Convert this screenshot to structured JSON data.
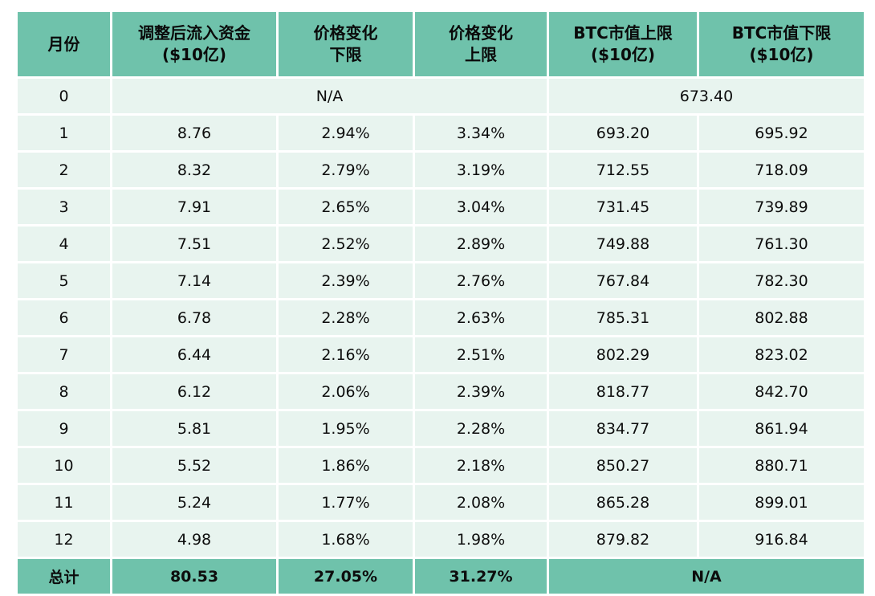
{
  "colors": {
    "accent_teal": "#6fc2ab",
    "body_mint": "#e8f4ef",
    "grid_white": "#ffffff",
    "text": "#0d0d0d"
  },
  "table": {
    "headers": [
      "月份",
      "调整后流入资金\n($10亿)",
      "价格变化\n下限",
      "价格变化\n上限",
      "BTC市值上限\n($10亿)",
      "BTC市值下限\n($10亿)"
    ],
    "row0": {
      "month": "0",
      "na": "N/A",
      "market_cap": "673.40"
    },
    "rows": [
      {
        "month": "1",
        "values": [
          "8.76",
          "2.94%",
          "3.34%",
          "693.20",
          "695.92"
        ]
      },
      {
        "month": "2",
        "values": [
          "8.32",
          "2.79%",
          "3.19%",
          "712.55",
          "718.09"
        ]
      },
      {
        "month": "3",
        "values": [
          "7.91",
          "2.65%",
          "3.04%",
          "731.45",
          "739.89"
        ]
      },
      {
        "month": "4",
        "values": [
          "7.51",
          "2.52%",
          "2.89%",
          "749.88",
          "761.30"
        ]
      },
      {
        "month": "5",
        "values": [
          "7.14",
          "2.39%",
          "2.76%",
          "767.84",
          "782.30"
        ]
      },
      {
        "month": "6",
        "values": [
          "6.78",
          "2.28%",
          "2.63%",
          "785.31",
          "802.88"
        ]
      },
      {
        "month": "7",
        "values": [
          "6.44",
          "2.16%",
          "2.51%",
          "802.29",
          "823.02"
        ]
      },
      {
        "month": "8",
        "values": [
          "6.12",
          "2.06%",
          "2.39%",
          "818.77",
          "842.70"
        ]
      },
      {
        "month": "9",
        "values": [
          "5.81",
          "1.95%",
          "2.28%",
          "834.77",
          "861.94"
        ]
      },
      {
        "month": "10",
        "values": [
          "5.52",
          "1.86%",
          "2.18%",
          "850.27",
          "880.71"
        ]
      },
      {
        "month": "11",
        "values": [
          "5.24",
          "1.77%",
          "2.08%",
          "865.28",
          "899.01"
        ]
      },
      {
        "month": "12",
        "values": [
          "4.98",
          "1.68%",
          "1.98%",
          "879.82",
          "916.84"
        ]
      }
    ],
    "total": {
      "label": "总计",
      "inflow": "80.53",
      "lower": "27.05%",
      "upper": "31.27%",
      "na": "N/A"
    }
  },
  "chart_data": {
    "type": "table",
    "title": "",
    "columns": [
      "月份",
      "调整后流入资金 ($10亿)",
      "价格变化下限",
      "价格变化上限",
      "BTC市值上限 ($10亿)",
      "BTC市值下限 ($10亿)"
    ],
    "rows": [
      [
        "0",
        "N/A",
        "N/A",
        "N/A",
        "673.40",
        "673.40"
      ],
      [
        "1",
        "8.76",
        "2.94%",
        "3.34%",
        "693.20",
        "695.92"
      ],
      [
        "2",
        "8.32",
        "2.79%",
        "3.19%",
        "712.55",
        "718.09"
      ],
      [
        "3",
        "7.91",
        "2.65%",
        "3.04%",
        "731.45",
        "739.89"
      ],
      [
        "4",
        "7.51",
        "2.52%",
        "2.89%",
        "749.88",
        "761.30"
      ],
      [
        "5",
        "7.14",
        "2.39%",
        "2.76%",
        "767.84",
        "782.30"
      ],
      [
        "6",
        "6.78",
        "2.28%",
        "2.63%",
        "785.31",
        "802.88"
      ],
      [
        "7",
        "6.44",
        "2.16%",
        "2.51%",
        "802.29",
        "823.02"
      ],
      [
        "8",
        "6.12",
        "2.06%",
        "2.39%",
        "818.77",
        "842.70"
      ],
      [
        "9",
        "5.81",
        "1.95%",
        "2.28%",
        "834.77",
        "861.94"
      ],
      [
        "10",
        "5.52",
        "1.86%",
        "2.18%",
        "850.27",
        "880.71"
      ],
      [
        "11",
        "5.24",
        "1.77%",
        "2.08%",
        "865.28",
        "899.01"
      ],
      [
        "12",
        "4.98",
        "1.68%",
        "1.98%",
        "879.82",
        "916.84"
      ],
      [
        "总计",
        "80.53",
        "27.05%",
        "31.27%",
        "N/A",
        "N/A"
      ]
    ],
    "layout_hints": {
      "merged_cells": [
        "row 0: N/A spans columns 2-4",
        "row 0: 673.40 spans columns 5-6",
        "total row: N/A spans columns 5-6"
      ],
      "header_background": "#6fc2ab",
      "total_row_background": "#6fc2ab",
      "body_background": "#e8f4ef"
    }
  }
}
